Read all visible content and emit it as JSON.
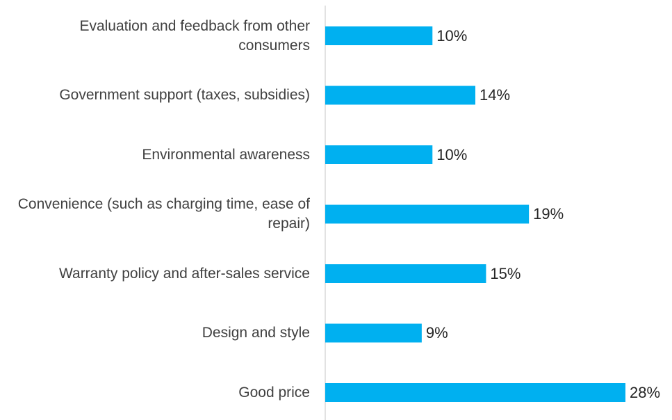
{
  "chart_data": {
    "type": "bar",
    "orientation": "horizontal",
    "categories": [
      "Evaluation and feedback from other consumers",
      "Government support (taxes, subsidies)",
      "Environmental awareness",
      "Convenience (such as charging time, ease of repair)",
      "Warranty policy and after-sales service",
      "Design and style",
      "Good price"
    ],
    "values": [
      10,
      14,
      10,
      19,
      15,
      9,
      28
    ],
    "data_labels": [
      "10%",
      "14%",
      "10%",
      "19%",
      "15%",
      "9%",
      "28%"
    ],
    "title": "",
    "xlabel": "",
    "ylabel": "",
    "xlim": [
      0,
      28
    ],
    "grid": false,
    "legend": "none",
    "colors": {
      "bar": "#00b0f0",
      "axis": "#d9d9d9",
      "label": "#404040",
      "value": "#262626"
    }
  }
}
